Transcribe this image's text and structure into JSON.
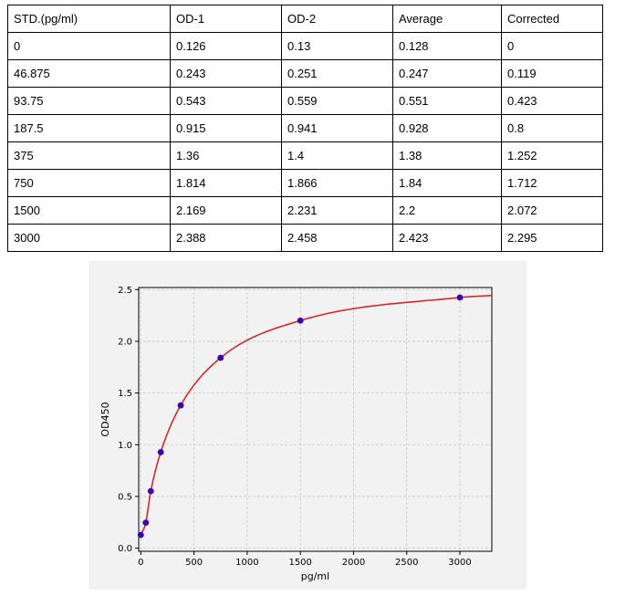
{
  "table": {
    "headers": [
      "STD.(pg/ml)",
      "OD-1",
      "OD-2",
      "Average",
      "Corrected"
    ],
    "rows": [
      [
        "0",
        "0.126",
        "0.13",
        "0.128",
        "0"
      ],
      [
        "46.875",
        "0.243",
        "0.251",
        "0.247",
        "0.119"
      ],
      [
        "93.75",
        "0.543",
        "0.559",
        "0.551",
        "0.423"
      ],
      [
        "187.5",
        "0.915",
        "0.941",
        "0.928",
        "0.8"
      ],
      [
        "375",
        "1.36",
        "1.4",
        "1.38",
        "1.252"
      ],
      [
        "750",
        "1.814",
        "1.866",
        "1.84",
        "1.712"
      ],
      [
        "1500",
        "2.169",
        "2.231",
        "2.2",
        "2.072"
      ],
      [
        "3000",
        "2.388",
        "2.458",
        "2.423",
        "2.295"
      ]
    ]
  },
  "chart_data": {
    "type": "scatter",
    "title": "",
    "xlabel": "pg/ml",
    "ylabel": "OD450",
    "xlim": [
      -20,
      3300
    ],
    "ylim": [
      -0.03,
      2.52
    ],
    "xticks": [
      0,
      500,
      1000,
      1500,
      2000,
      2500,
      3000
    ],
    "yticks": [
      0.0,
      0.5,
      1.0,
      1.5,
      2.0,
      2.5
    ],
    "xtick_labels": [
      "0",
      "500",
      "1000",
      "1500",
      "2000",
      "2500",
      "3000"
    ],
    "ytick_labels": [
      "0.0",
      "0.5",
      "1.0",
      "1.5",
      "2.0",
      "2.5"
    ],
    "grid": true,
    "series": [
      {
        "x": [
          0,
          46.875,
          93.75,
          187.5,
          375,
          750,
          1500,
          3000
        ],
        "y": [
          0.128,
          0.247,
          0.551,
          0.928,
          1.38,
          1.84,
          2.2,
          2.423
        ],
        "marker_color": "#3a00b8"
      }
    ],
    "fit_curve_color": "#d62728"
  }
}
